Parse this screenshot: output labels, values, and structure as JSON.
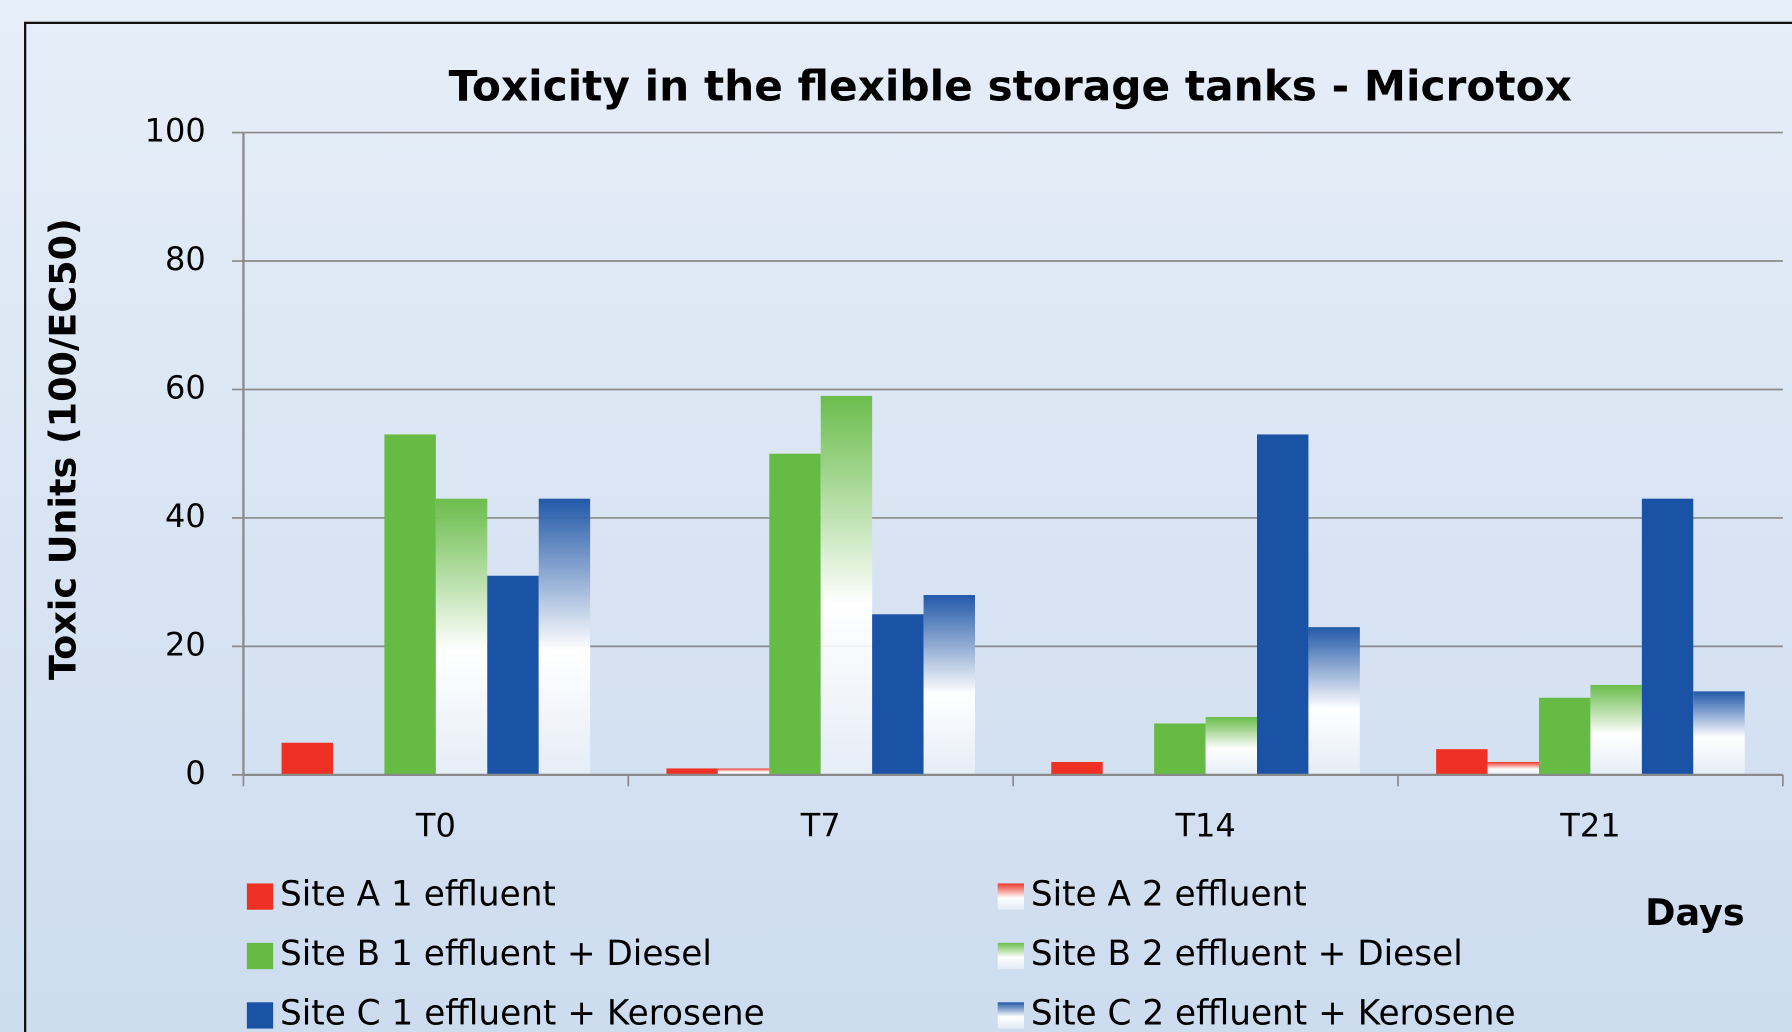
{
  "chart_data": {
    "type": "bar",
    "title": "Toxicity in the flexible storage tanks - Microtox",
    "y_label": "Toxic Units (100/EC50)",
    "x_label": "Days",
    "categories": [
      "T0",
      "T7",
      "T14",
      "T21"
    ],
    "series": [
      {
        "name": "Site A 1 effluent",
        "color": "#ee3124",
        "gradient": false,
        "values": [
          5,
          1,
          2,
          4
        ]
      },
      {
        "name": "Site A 2 effluent",
        "color": "#ee3124",
        "gradient": true,
        "values": [
          0,
          1,
          0,
          2
        ]
      },
      {
        "name": "Site B 1 effluent + Diesel",
        "color": "#66bb44",
        "gradient": false,
        "values": [
          53,
          50,
          8,
          12
        ]
      },
      {
        "name": "Site B 2 effluent + Diesel",
        "color": "#66bb44",
        "gradient": true,
        "values": [
          43,
          59,
          9,
          14
        ]
      },
      {
        "name": "Site C 1 effluent + Kerosene",
        "color": "#1a52a5",
        "gradient": false,
        "values": [
          31,
          25,
          53,
          43
        ]
      },
      {
        "name": "Site C 2 effluent + Kerosene",
        "color": "#1a52a5",
        "gradient": true,
        "values": [
          43,
          28,
          23,
          13
        ]
      }
    ],
    "ylim": [
      0,
      100
    ],
    "yticks": [
      0,
      20,
      40,
      60,
      80,
      100
    ],
    "grid": true
  }
}
